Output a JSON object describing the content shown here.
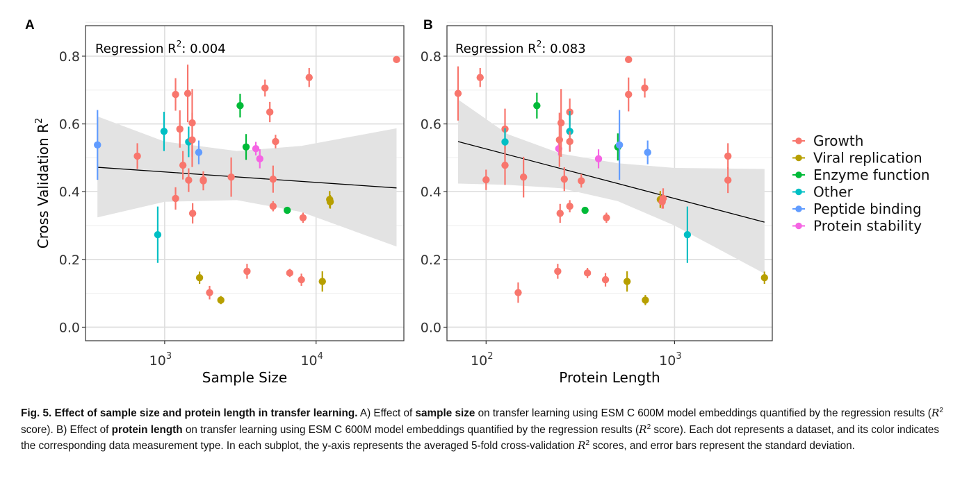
{
  "colors": {
    "Growth": "#F8766D",
    "Viral replication": "#B79F00",
    "Enzyme function": "#00BA38",
    "Other": "#00BFC4",
    "Peptide binding": "#619CFF",
    "Protein stability": "#F564E3",
    "ci_band": "#e3e3e3",
    "grid": "#dddddd"
  },
  "legend": {
    "items": [
      "Growth",
      "Viral replication",
      "Enzyme function",
      "Other",
      "Peptide binding",
      "Protein stability"
    ]
  },
  "chart_data": [
    {
      "type": "scatter",
      "panel_label": "A",
      "annotation_prefix": "Regression  R",
      "annotation_sup": "2",
      "annotation_value": ":  0.004",
      "xlabel": "Sample Size",
      "ylabel": "Cross Validation R",
      "ylabel_sup": "2",
      "x_scale": "log10",
      "xlim": [
        300,
        38000
      ],
      "ylim": [
        -0.04,
        0.89
      ],
      "x_ticks": [
        {
          "value": 1000,
          "base": "10",
          "exp": "3"
        },
        {
          "value": 10000,
          "base": "10",
          "exp": "4"
        }
      ],
      "y_ticks": [
        {
          "value": 0.0,
          "label": "0.0"
        },
        {
          "value": 0.2,
          "label": "0.2"
        },
        {
          "value": 0.4,
          "label": "0.4"
        },
        {
          "value": 0.6,
          "label": "0.6"
        },
        {
          "value": 0.8,
          "label": "0.8"
        }
      ],
      "regression": {
        "x": [
          360,
          34000
        ],
        "y": [
          0.472,
          0.411
        ]
      },
      "ci_band": {
        "x": [
          360,
          1000,
          3000,
          8000,
          34000
        ],
        "upper": [
          0.622,
          0.548,
          0.52,
          0.535,
          0.587
        ],
        "lower": [
          0.324,
          0.37,
          0.375,
          0.34,
          0.238
        ]
      },
      "points": [
        {
          "x": 360,
          "y": 0.538,
          "sd": 0.103,
          "cat": "Peptide binding"
        },
        {
          "x": 660,
          "y": 0.505,
          "sd": 0.038,
          "cat": "Growth"
        },
        {
          "x": 900,
          "y": 0.273,
          "sd": 0.083,
          "cat": "Other"
        },
        {
          "x": 990,
          "y": 0.578,
          "sd": 0.058,
          "cat": "Other"
        },
        {
          "x": 1180,
          "y": 0.687,
          "sd": 0.048,
          "cat": "Growth"
        },
        {
          "x": 1180,
          "y": 0.38,
          "sd": 0.033,
          "cat": "Growth"
        },
        {
          "x": 1260,
          "y": 0.585,
          "sd": 0.055,
          "cat": "Growth"
        },
        {
          "x": 1320,
          "y": 0.478,
          "sd": 0.042,
          "cat": "Growth"
        },
        {
          "x": 1420,
          "y": 0.69,
          "sd": 0.085,
          "cat": "Growth"
        },
        {
          "x": 1440,
          "y": 0.547,
          "sd": 0.045,
          "cat": "Other"
        },
        {
          "x": 1440,
          "y": 0.434,
          "sd": 0.035,
          "cat": "Growth"
        },
        {
          "x": 1520,
          "y": 0.603,
          "sd": 0.1,
          "cat": "Growth"
        },
        {
          "x": 1520,
          "y": 0.553,
          "sd": 0.08,
          "cat": "Growth"
        },
        {
          "x": 1530,
          "y": 0.336,
          "sd": 0.03,
          "cat": "Growth"
        },
        {
          "x": 1680,
          "y": 0.516,
          "sd": 0.035,
          "cat": "Peptide binding"
        },
        {
          "x": 1700,
          "y": 0.146,
          "sd": 0.018,
          "cat": "Viral replication"
        },
        {
          "x": 1800,
          "y": 0.432,
          "sd": 0.028,
          "cat": "Growth"
        },
        {
          "x": 1800,
          "y": 0.435,
          "sd": 0.02,
          "cat": "Growth"
        },
        {
          "x": 1980,
          "y": 0.102,
          "sd": 0.02,
          "cat": "Growth"
        },
        {
          "x": 2350,
          "y": 0.08,
          "sd": 0.012,
          "cat": "Viral replication"
        },
        {
          "x": 2750,
          "y": 0.443,
          "sd": 0.058,
          "cat": "Growth"
        },
        {
          "x": 3150,
          "y": 0.654,
          "sd": 0.035,
          "cat": "Enzyme function"
        },
        {
          "x": 3450,
          "y": 0.532,
          "sd": 0.038,
          "cat": "Enzyme function"
        },
        {
          "x": 3500,
          "y": 0.165,
          "sd": 0.022,
          "cat": "Growth"
        },
        {
          "x": 4000,
          "y": 0.527,
          "sd": 0.02,
          "cat": "Protein stability"
        },
        {
          "x": 4250,
          "y": 0.497,
          "sd": 0.028,
          "cat": "Protein stability"
        },
        {
          "x": 4600,
          "y": 0.706,
          "sd": 0.025,
          "cat": "Growth"
        },
        {
          "x": 4950,
          "y": 0.635,
          "sd": 0.03,
          "cat": "Growth"
        },
        {
          "x": 5200,
          "y": 0.437,
          "sd": 0.04,
          "cat": "Growth"
        },
        {
          "x": 5200,
          "y": 0.357,
          "sd": 0.015,
          "cat": "Growth"
        },
        {
          "x": 5400,
          "y": 0.548,
          "sd": 0.02,
          "cat": "Growth"
        },
        {
          "x": 6450,
          "y": 0.345,
          "sd": 0.0,
          "cat": "Enzyme function"
        },
        {
          "x": 6700,
          "y": 0.16,
          "sd": 0.012,
          "cat": "Growth"
        },
        {
          "x": 8000,
          "y": 0.14,
          "sd": 0.018,
          "cat": "Growth"
        },
        {
          "x": 8200,
          "y": 0.323,
          "sd": 0.015,
          "cat": "Growth"
        },
        {
          "x": 9000,
          "y": 0.737,
          "sd": 0.028,
          "cat": "Growth"
        },
        {
          "x": 11000,
          "y": 0.135,
          "sd": 0.03,
          "cat": "Viral replication"
        },
        {
          "x": 12300,
          "y": 0.377,
          "sd": 0.025,
          "cat": "Viral replication"
        },
        {
          "x": 12400,
          "y": 0.37,
          "sd": 0.02,
          "cat": "Viral replication"
        },
        {
          "x": 34000,
          "y": 0.79,
          "sd": 0.0,
          "cat": "Growth"
        }
      ]
    },
    {
      "type": "scatter",
      "panel_label": "B",
      "annotation_prefix": "Regression  R",
      "annotation_sup": "2",
      "annotation_value": ":  0.083",
      "xlabel": "Protein Length",
      "ylabel": "",
      "ylabel_sup": "",
      "x_scale": "log10",
      "xlim": [
        62,
        3300
      ],
      "ylim": [
        -0.04,
        0.89
      ],
      "x_ticks": [
        {
          "value": 100,
          "base": "10",
          "exp": "2"
        },
        {
          "value": 1000,
          "base": "10",
          "exp": "3"
        }
      ],
      "y_ticks": [
        {
          "value": 0.0,
          "label": "0.0"
        },
        {
          "value": 0.2,
          "label": "0.2"
        },
        {
          "value": 0.4,
          "label": "0.4"
        },
        {
          "value": 0.6,
          "label": "0.6"
        },
        {
          "value": 0.8,
          "label": "0.8"
        }
      ],
      "regression": {
        "x": [
          71,
          3000
        ],
        "y": [
          0.548,
          0.31
        ]
      },
      "ci_band": {
        "x": [
          71,
          130,
          250,
          500,
          1000,
          3000
        ],
        "upper": [
          0.672,
          0.57,
          0.512,
          0.484,
          0.47,
          0.467
        ],
        "lower": [
          0.424,
          0.42,
          0.41,
          0.372,
          0.3,
          0.158
        ]
      },
      "points": [
        {
          "x": 71,
          "y": 0.69,
          "sd": 0.08,
          "cat": "Growth"
        },
        {
          "x": 93,
          "y": 0.737,
          "sd": 0.028,
          "cat": "Growth"
        },
        {
          "x": 100,
          "y": 0.435,
          "sd": 0.03,
          "cat": "Growth"
        },
        {
          "x": 126,
          "y": 0.585,
          "sd": 0.06,
          "cat": "Growth"
        },
        {
          "x": 126,
          "y": 0.547,
          "sd": 0.04,
          "cat": "Other"
        },
        {
          "x": 126,
          "y": 0.478,
          "sd": 0.058,
          "cat": "Growth"
        },
        {
          "x": 148,
          "y": 0.102,
          "sd": 0.03,
          "cat": "Growth"
        },
        {
          "x": 158,
          "y": 0.443,
          "sd": 0.06,
          "cat": "Growth"
        },
        {
          "x": 186,
          "y": 0.654,
          "sd": 0.038,
          "cat": "Enzyme function"
        },
        {
          "x": 240,
          "y": 0.165,
          "sd": 0.022,
          "cat": "Growth"
        },
        {
          "x": 243,
          "y": 0.527,
          "sd": 0.02,
          "cat": "Protein stability"
        },
        {
          "x": 245,
          "y": 0.553,
          "sd": 0.08,
          "cat": "Growth"
        },
        {
          "x": 247,
          "y": 0.336,
          "sd": 0.028,
          "cat": "Growth"
        },
        {
          "x": 250,
          "y": 0.603,
          "sd": 0.1,
          "cat": "Growth"
        },
        {
          "x": 260,
          "y": 0.437,
          "sd": 0.035,
          "cat": "Growth"
        },
        {
          "x": 278,
          "y": 0.635,
          "sd": 0.04,
          "cat": "Growth"
        },
        {
          "x": 278,
          "y": 0.578,
          "sd": 0.06,
          "cat": "Other"
        },
        {
          "x": 278,
          "y": 0.548,
          "sd": 0.03,
          "cat": "Growth"
        },
        {
          "x": 278,
          "y": 0.357,
          "sd": 0.018,
          "cat": "Growth"
        },
        {
          "x": 320,
          "y": 0.432,
          "sd": 0.02,
          "cat": "Growth"
        },
        {
          "x": 335,
          "y": 0.345,
          "sd": 0.0,
          "cat": "Enzyme function"
        },
        {
          "x": 345,
          "y": 0.16,
          "sd": 0.015,
          "cat": "Growth"
        },
        {
          "x": 395,
          "y": 0.497,
          "sd": 0.028,
          "cat": "Protein stability"
        },
        {
          "x": 430,
          "y": 0.14,
          "sd": 0.02,
          "cat": "Growth"
        },
        {
          "x": 435,
          "y": 0.323,
          "sd": 0.015,
          "cat": "Growth"
        },
        {
          "x": 500,
          "y": 0.532,
          "sd": 0.04,
          "cat": "Enzyme function"
        },
        {
          "x": 510,
          "y": 0.538,
          "sd": 0.103,
          "cat": "Peptide binding"
        },
        {
          "x": 560,
          "y": 0.135,
          "sd": 0.03,
          "cat": "Viral replication"
        },
        {
          "x": 570,
          "y": 0.79,
          "sd": 0.0,
          "cat": "Growth"
        },
        {
          "x": 570,
          "y": 0.687,
          "sd": 0.05,
          "cat": "Growth"
        },
        {
          "x": 695,
          "y": 0.706,
          "sd": 0.028,
          "cat": "Growth"
        },
        {
          "x": 700,
          "y": 0.08,
          "sd": 0.015,
          "cat": "Viral replication"
        },
        {
          "x": 720,
          "y": 0.516,
          "sd": 0.035,
          "cat": "Peptide binding"
        },
        {
          "x": 840,
          "y": 0.377,
          "sd": 0.025,
          "cat": "Viral replication"
        },
        {
          "x": 860,
          "y": 0.37,
          "sd": 0.02,
          "cat": "Growth"
        },
        {
          "x": 870,
          "y": 0.38,
          "sd": 0.03,
          "cat": "Growth"
        },
        {
          "x": 1170,
          "y": 0.273,
          "sd": 0.083,
          "cat": "Other"
        },
        {
          "x": 1920,
          "y": 0.505,
          "sd": 0.038,
          "cat": "Growth"
        },
        {
          "x": 1920,
          "y": 0.434,
          "sd": 0.038,
          "cat": "Growth"
        },
        {
          "x": 3000,
          "y": 0.146,
          "sd": 0.018,
          "cat": "Viral replication"
        }
      ]
    }
  ],
  "caption": {
    "fig_label": "Fig. 5. Effect of sample size and protein length in transfer learning.",
    "line1_a": " A) Effect of ",
    "line1_b": "sample size",
    "line1_c": " on transfer learning using ESM C 600M model embeddings quantified by the regression results (",
    "r2_symbol": "R",
    "r2_sup": "2",
    "line1_d": " score). B) Effect of ",
    "line1_e": "protein length",
    "line1_f": " on transfer learning using ESM C 600M model embeddings quantified by the regression results (",
    "line1_g": " score). Each dot represents a dataset, and its color indicates the corresponding data measurement type. In each subplot, the y-axis represents the averaged 5-fold cross-validation ",
    "line1_h": " scores, and error bars represent the standard deviation."
  }
}
